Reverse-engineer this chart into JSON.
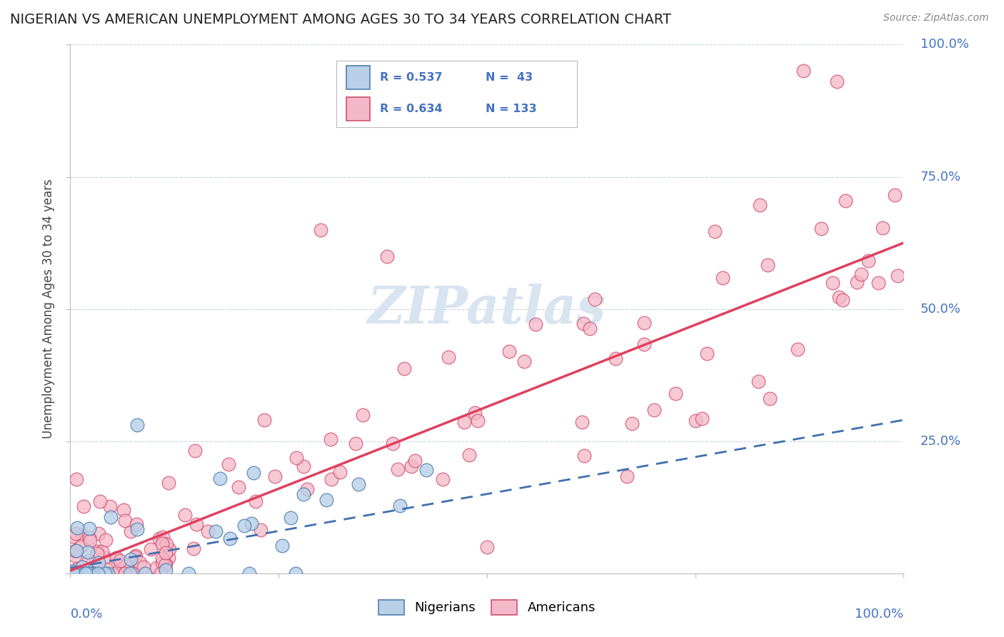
{
  "title": "NIGERIAN VS AMERICAN UNEMPLOYMENT AMONG AGES 30 TO 34 YEARS CORRELATION CHART",
  "source": "Source: ZipAtlas.com",
  "ylabel": "Unemployment Among Ages 30 to 34 years",
  "ytick_labels": [
    "0.0%",
    "25.0%",
    "50.0%",
    "75.0%",
    "100.0%"
  ],
  "ytick_values": [
    0,
    25,
    50,
    75,
    100
  ],
  "legend_r_nigerian": "R = 0.537",
  "legend_n_nigerian": "N =  43",
  "legend_r_american": "R = 0.634",
  "legend_n_american": "N = 133",
  "nigerian_fill_color": "#b8d0e8",
  "nigerian_edge_color": "#5080b0",
  "american_fill_color": "#f5b8c8",
  "american_edge_color": "#d05070",
  "nigerian_line_color": "#4070b0",
  "american_line_color": "#e04060",
  "watermark_color": "#d8e4f0",
  "title_color": "#222222",
  "label_color": "#4472c4",
  "source_color": "#888888",
  "nigerian_trend_slope": 0.28,
  "nigerian_trend_intercept": 1.0,
  "american_trend_slope": 0.62,
  "american_trend_intercept": 0.5
}
